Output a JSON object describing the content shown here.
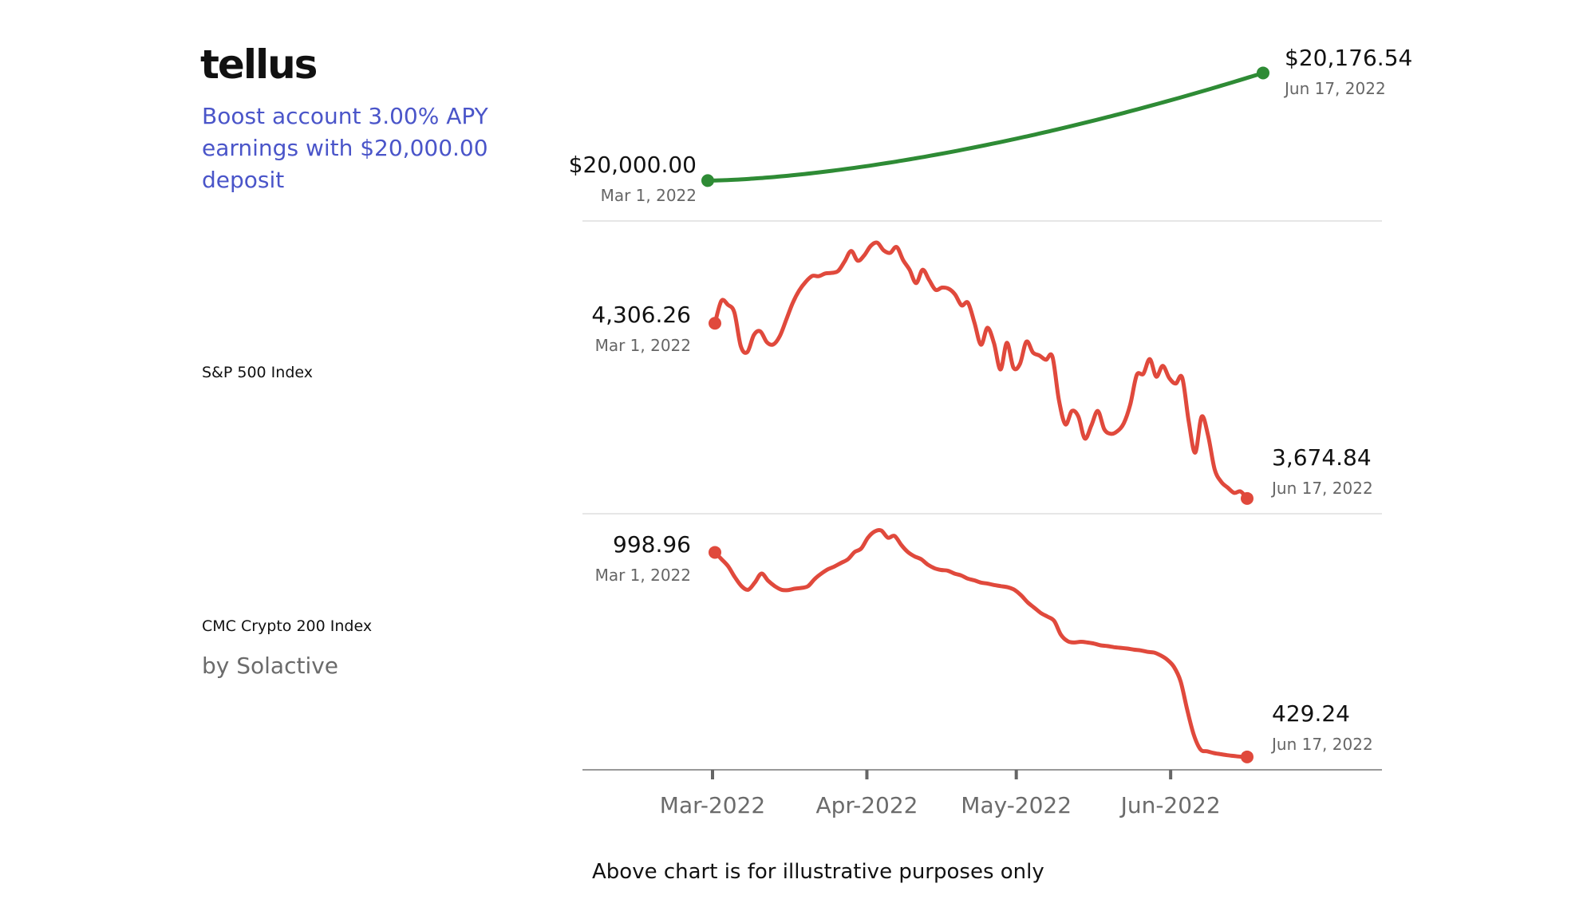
{
  "brand": {
    "logo_text": "tellus"
  },
  "boost": {
    "line1": "Boost account 3.00% APY",
    "line2": "earnings with $20,000.00 deposit"
  },
  "rows": {
    "sp500": {
      "label": "S&P 500 Index"
    },
    "crypto": {
      "label": "CMC Crypto 200 Index",
      "sublabel": "by Solactive"
    }
  },
  "footnote": "Above chart is for illustrative purposes only",
  "colors": {
    "up": "#2e8b35",
    "down": "#e0493c",
    "accent": "#4a55c9",
    "grid": "#e6e6e6",
    "axis": "#999999"
  },
  "chart_data": [
    {
      "type": "line",
      "start": {
        "value_label": "$20,000.00",
        "date_label": "Mar 1, 2022"
      },
      "end": {
        "value_label": "$20,176.54",
        "date_label": "Jun 17, 2022"
      },
      "series": [
        {
          "x": [
            "2022-03-01",
            "2022-06-17"
          ],
          "values": [
            20000.0,
            20176.54
          ]
        }
      ],
      "ylim": [
        19990,
        20185
      ]
    },
    {
      "type": "line",
      "start": {
        "value_label": "4,306.26",
        "date_label": "Mar 1, 2022"
      },
      "end": {
        "value_label": "3,674.84",
        "date_label": "Jun 17, 2022"
      },
      "series": [
        {
          "values": [
            4306.26,
            4387,
            4373,
            4345,
            4223,
            4203,
            4264,
            4277,
            4238,
            4230,
            4260,
            4320,
            4380,
            4425,
            4456,
            4477,
            4476,
            4486,
            4488,
            4495,
            4530,
            4567,
            4532,
            4551,
            4585,
            4597,
            4569,
            4560,
            4581,
            4534,
            4499,
            4451,
            4499,
            4463,
            4427,
            4435,
            4431,
            4410,
            4371,
            4380,
            4307,
            4229,
            4290,
            4234,
            4140,
            4236,
            4146,
            4160,
            4240,
            4201,
            4190,
            4175,
            4186,
            4030,
            3942,
            3990,
            3970,
            3891,
            3938,
            3990,
            3924,
            3908,
            3917,
            3946,
            4014,
            4120,
            4124,
            4177,
            4114,
            4153,
            4109,
            4089,
            4110,
            3953,
            3840,
            3970,
            3900,
            3780,
            3735,
            3714,
            3695,
            3700,
            3674.84
          ]
        }
      ],
      "ylim": [
        3660,
        4655
      ]
    },
    {
      "type": "line",
      "start": {
        "value_label": "998.96",
        "date_label": "Mar 1, 2022"
      },
      "end": {
        "value_label": "429.24",
        "date_label": "Jun 17, 2022"
      },
      "series": [
        {
          "values": [
            998.96,
            980,
            960,
            930,
            905,
            895,
            915,
            940,
            920,
            905,
            895,
            894,
            898,
            900,
            905,
            925,
            940,
            952,
            960,
            970,
            980,
            1000,
            1010,
            1040,
            1057,
            1060,
            1040,
            1045,
            1020,
            1000,
            988,
            980,
            965,
            955,
            950,
            948,
            940,
            935,
            926,
            921,
            915,
            912,
            908,
            905,
            902,
            895,
            880,
            860,
            845,
            830,
            820,
            808,
            770,
            752,
            748,
            750,
            748,
            745,
            740,
            738,
            735,
            733,
            731,
            728,
            726,
            722,
            720,
            712,
            700,
            680,
            640,
            560,
            490,
            450,
            445,
            440,
            437,
            434,
            432,
            430,
            429.24
          ]
        }
      ],
      "ylim": [
        420,
        1060
      ]
    }
  ],
  "x_axis": {
    "start_date": "2022-03-01",
    "end_date": "2022-06-17",
    "ticks": [
      {
        "date": "2022-03-01",
        "label": "Mar-2022"
      },
      {
        "date": "2022-04-01",
        "label": "Apr-2022"
      },
      {
        "date": "2022-05-01",
        "label": "May-2022"
      },
      {
        "date": "2022-06-01",
        "label": "Jun-2022"
      }
    ]
  }
}
